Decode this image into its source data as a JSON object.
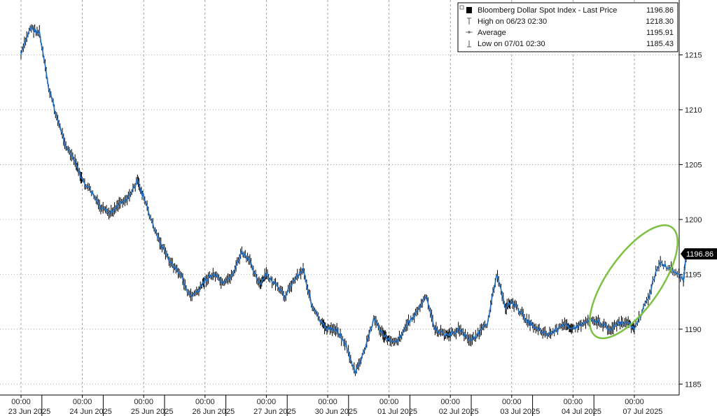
{
  "chart_data": {
    "type": "line",
    "title": "",
    "ylim": [
      1184,
      1220
    ],
    "y_ticks": [
      1185,
      1190,
      1195,
      1200,
      1205,
      1210,
      1215
    ],
    "y_axis_side": "right",
    "grid": "vertical-dashed",
    "x_ticks": [
      {
        "time": "00:00",
        "date": "23 Jun 2025"
      },
      {
        "time": "00:00",
        "date": "24 Jun 2025"
      },
      {
        "time": "00:00",
        "date": "25 Jun 2025"
      },
      {
        "time": "00:00",
        "date": "26 Jun 2025"
      },
      {
        "time": "00:00",
        "date": "27 Jun 2025"
      },
      {
        "time": "00:00",
        "date": "30 Jun 2025"
      },
      {
        "time": "00:00",
        "date": "01 Jul 2025"
      },
      {
        "time": "00:00",
        "date": "02 Jul 2025"
      },
      {
        "time": "00:00",
        "date": "03 Jul 2025"
      },
      {
        "time": "00:00",
        "date": "04 Jul 2025"
      },
      {
        "time": "00:00",
        "date": "07 Jul 2025"
      }
    ],
    "legend": {
      "placement": "top-right",
      "entries": [
        {
          "label": "Bloomberg Dollar Spot Index - Last Price",
          "value": "1196.86"
        },
        {
          "label": "High on 06/23 02:30",
          "value": "1218.30"
        },
        {
          "label": "Average",
          "value": "1195.91"
        },
        {
          "label": "Low on 07/01 02:30",
          "value": "1185.43"
        }
      ]
    },
    "last_price_label": "1196.86",
    "last_price": 1196.86,
    "highlight": {
      "shape": "ellipse",
      "color": "#7dc142",
      "around": "07 Jul 2025 rally"
    },
    "colors": {
      "line": "#1f6fc4",
      "candle": "#000000",
      "background": "#ffffff"
    },
    "series": [
      {
        "x": [
          0.0,
          0.15,
          0.3,
          0.45,
          0.6,
          0.75,
          0.9,
          1.0,
          1.15,
          1.3,
          1.45,
          1.6,
          1.75,
          1.9,
          2.0,
          2.15,
          2.3,
          2.45,
          2.6,
          2.75,
          2.9,
          3.0,
          3.15,
          3.3,
          3.45,
          3.6,
          3.75,
          3.9,
          4.0,
          4.15,
          4.3,
          4.45,
          4.6,
          4.75,
          4.9,
          5.0,
          5.15,
          5.3,
          5.45,
          5.6,
          5.75,
          5.9,
          6.0,
          6.15,
          6.3,
          6.45,
          6.6,
          6.75,
          6.9,
          7.0,
          7.15,
          7.3,
          7.45,
          7.6,
          7.75,
          7.9,
          8.0,
          8.15,
          8.3,
          8.45,
          8.6,
          8.75,
          8.9,
          9.0,
          9.15,
          9.3,
          9.45,
          9.6,
          9.75,
          9.9,
          10.0,
          10.2,
          10.4,
          10.6,
          10.8,
          10.85
        ],
        "values": [
          1215.0,
          1217.5,
          1217.0,
          1212.0,
          1209.0,
          1206.5,
          1205.0,
          1203.5,
          1202.5,
          1201.0,
          1200.5,
          1201.5,
          1202.0,
          1203.5,
          1202.0,
          1199.5,
          1197.5,
          1196.0,
          1195.0,
          1193.0,
          1193.5,
          1194.5,
          1195.0,
          1194.0,
          1195.0,
          1197.0,
          1196.0,
          1194.0,
          1195.0,
          1194.0,
          1193.0,
          1194.5,
          1195.5,
          1192.0,
          1190.5,
          1190.0,
          1190.0,
          1188.5,
          1186.0,
          1188.0,
          1191.0,
          1189.5,
          1189.0,
          1189.0,
          1190.5,
          1191.5,
          1193.0,
          1190.0,
          1189.5,
          1189.5,
          1190.0,
          1189.0,
          1189.5,
          1190.5,
          1195.0,
          1192.0,
          1192.5,
          1191.5,
          1190.5,
          1190.0,
          1189.5,
          1190.0,
          1190.5,
          1190.0,
          1190.5,
          1191.0,
          1190.5,
          1190.0,
          1190.5,
          1190.5,
          1190.0,
          1192.5,
          1196.0,
          1195.5,
          1194.5,
          1196.86
        ]
      }
    ]
  }
}
